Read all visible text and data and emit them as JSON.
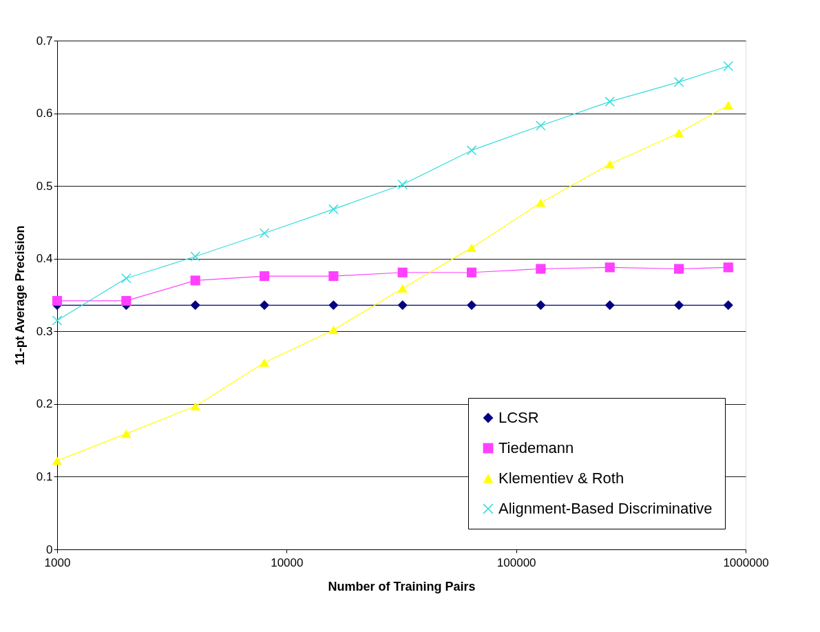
{
  "chart_data": {
    "type": "line",
    "xlabel": "Number of Training Pairs",
    "ylabel": "11-pt Average Precision",
    "x": [
      1000,
      2000,
      4000,
      8000,
      16000,
      32000,
      64000,
      128000,
      256000,
      512000,
      840000
    ],
    "series": [
      {
        "name": "LCSR",
        "color": "#000080",
        "marker": "diamond",
        "values": [
          0.336,
          0.336,
          0.336,
          0.336,
          0.336,
          0.336,
          0.336,
          0.336,
          0.336,
          0.336,
          0.336
        ]
      },
      {
        "name": "Tiedemann",
        "color": "#ff40ff",
        "marker": "square",
        "values": [
          0.342,
          0.342,
          0.37,
          0.376,
          0.376,
          0.381,
          0.381,
          0.386,
          0.388,
          0.386,
          0.388
        ]
      },
      {
        "name": "Klementiev & Roth",
        "color": "#ffff00",
        "marker": "triangle",
        "values": [
          0.122,
          0.159,
          0.197,
          0.257,
          0.302,
          0.359,
          0.415,
          0.477,
          0.53,
          0.573,
          0.611
        ]
      },
      {
        "name": "Alignment-Based Discriminative",
        "color": "#33dddd",
        "marker": "cross",
        "values": [
          0.315,
          0.373,
          0.403,
          0.435,
          0.468,
          0.502,
          0.549,
          0.583,
          0.616,
          0.643,
          0.665
        ]
      }
    ],
    "log": "x",
    "xlim": [
      1000,
      1000000
    ],
    "xticks": [
      1000,
      10000,
      100000,
      1000000
    ],
    "ylim": [
      0,
      0.7
    ],
    "yticks": [
      0,
      0.1,
      0.2,
      0.3,
      0.4,
      0.5,
      0.6,
      0.7
    ],
    "grid": "y",
    "legend": "bottom right",
    "line_style": "solid"
  }
}
